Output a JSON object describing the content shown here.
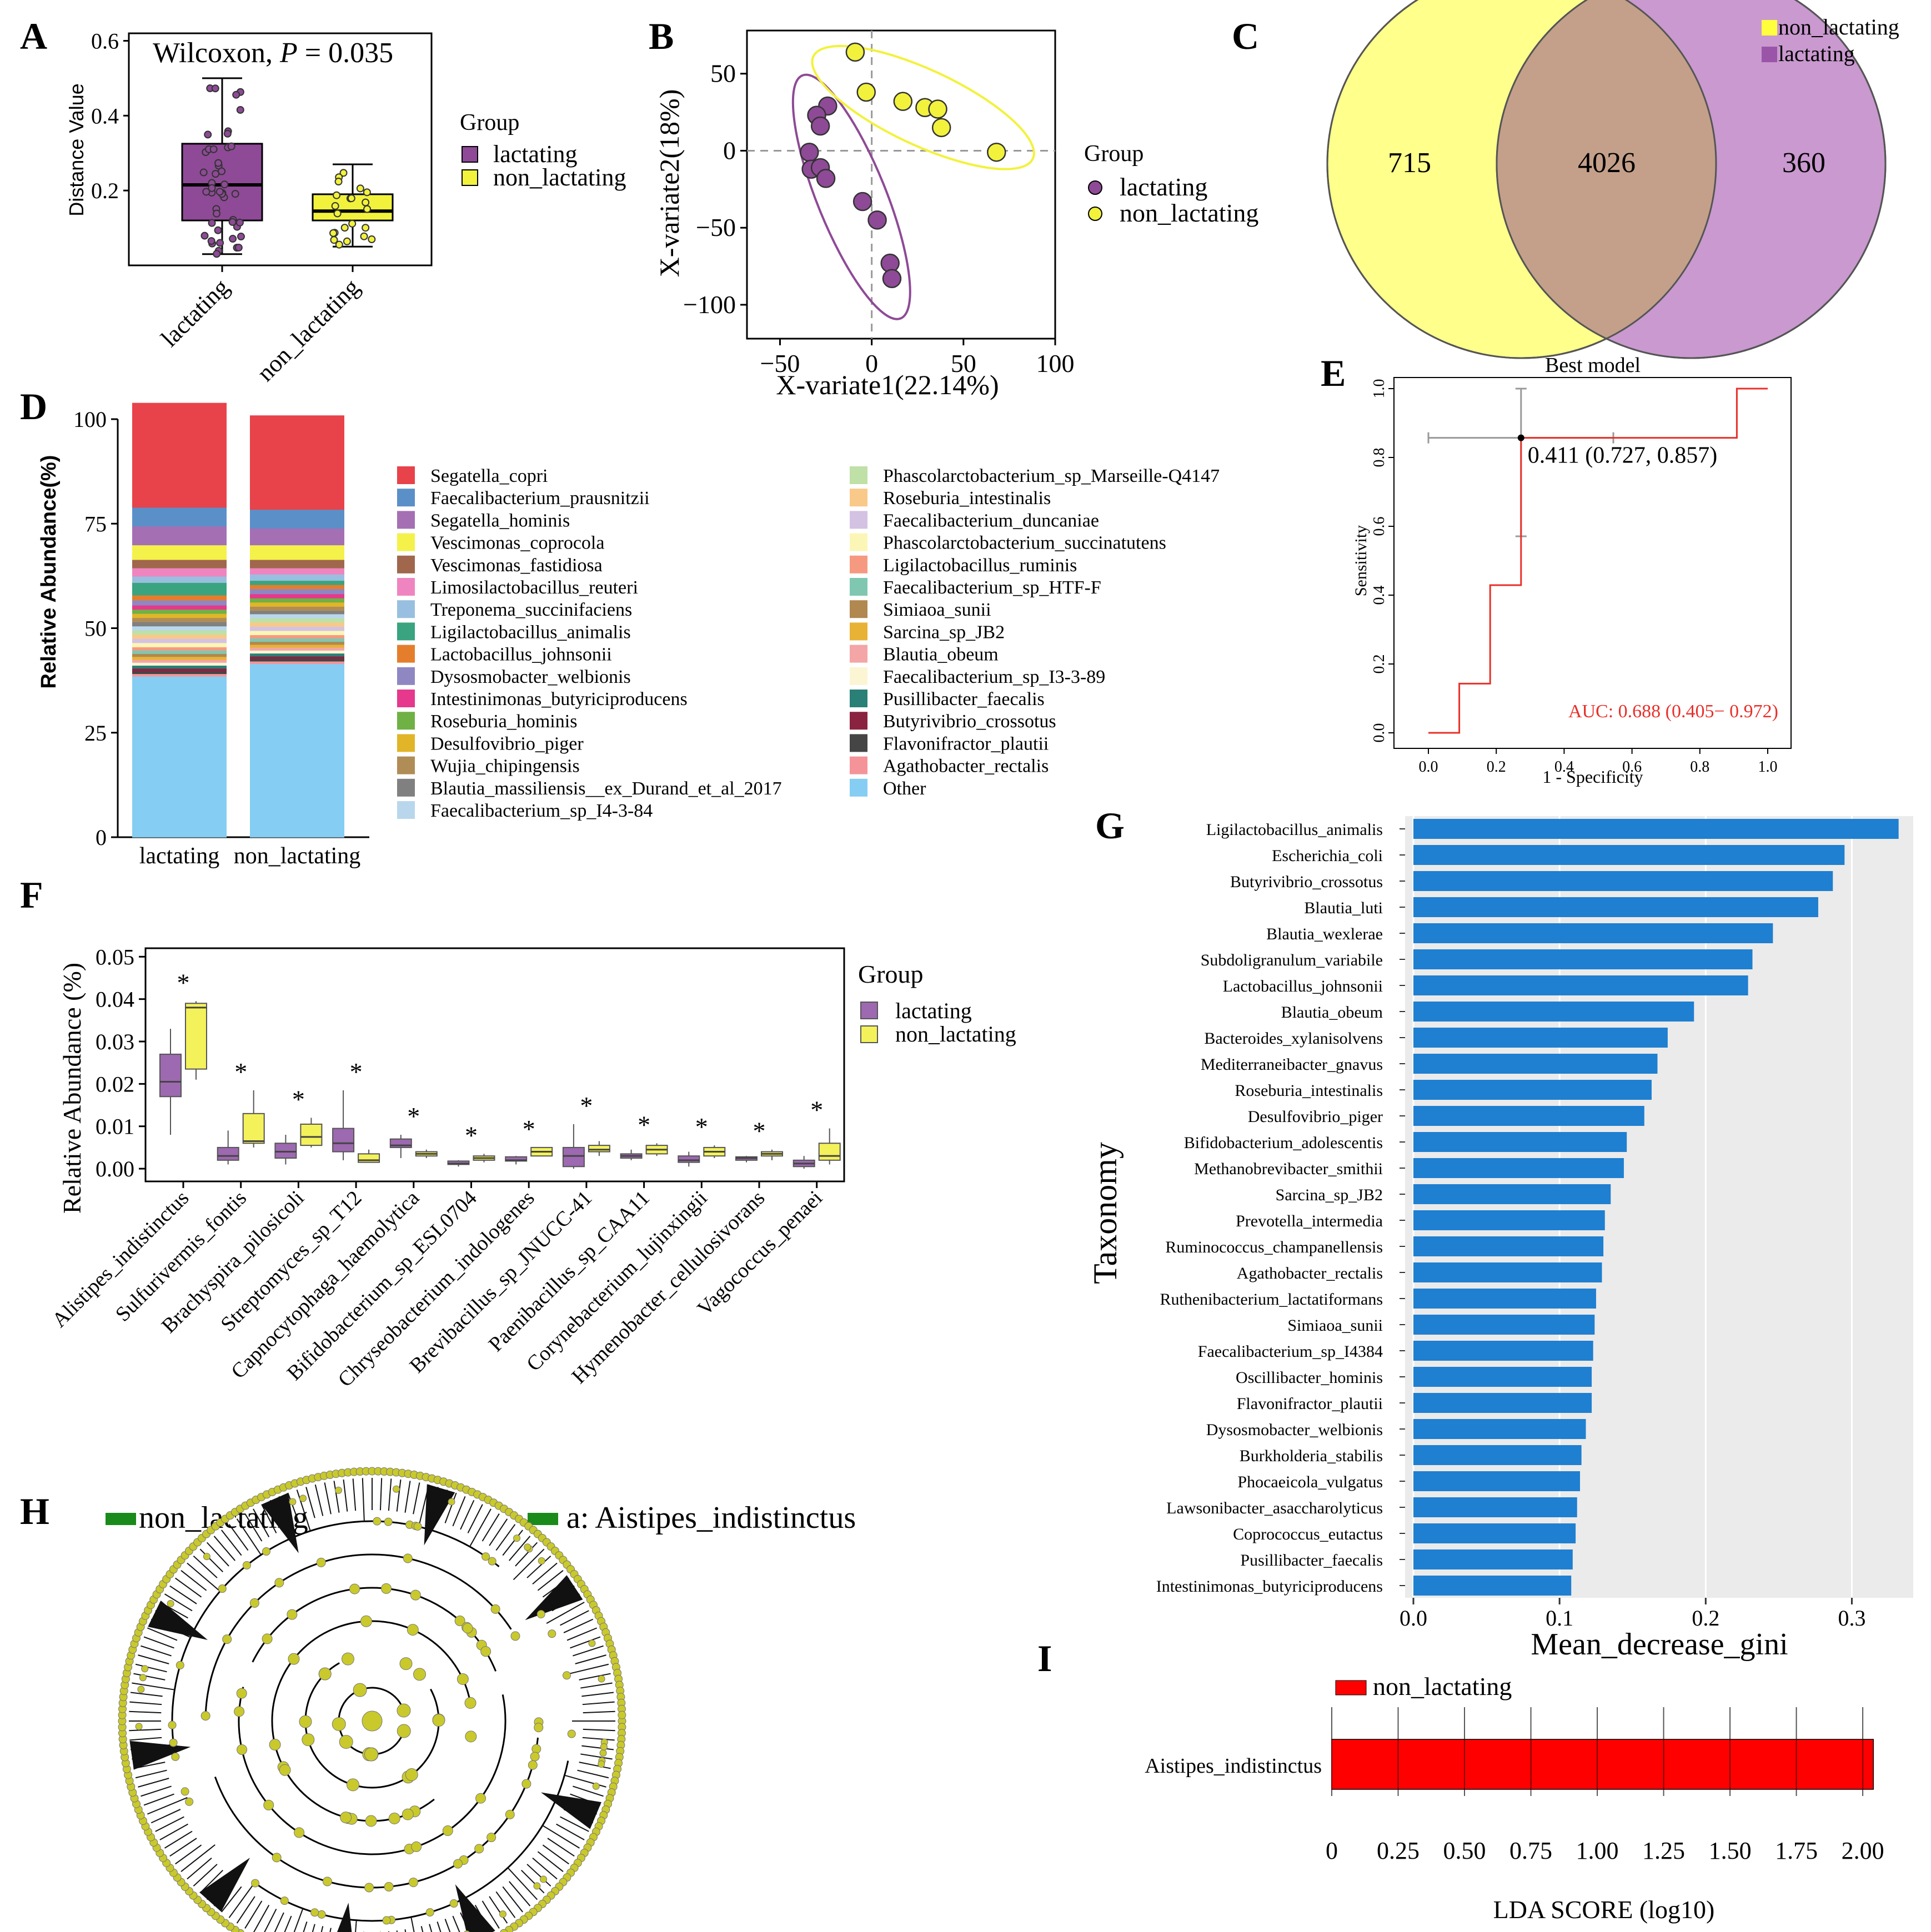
{
  "panels": {
    "A": "A",
    "B": "B",
    "C": "C",
    "D": "D",
    "E": "E",
    "F": "F",
    "G": "G",
    "H": "H",
    "I": "I"
  },
  "chart_data": [
    {
      "id": "A",
      "type": "box",
      "title": "Wilcoxon, P = 0.035",
      "title_parts": {
        "prefix": "Wilcoxon, ",
        "p": "P",
        "suffix": " = 0.035"
      },
      "ylabel": "Distance Value",
      "ylim": [
        0.0,
        0.62
      ],
      "yticks": [
        "0.2",
        "0.4",
        "0.6"
      ],
      "ytick_values": [
        0.2,
        0.4,
        0.6
      ],
      "categories": [
        "lactating",
        "non_lactating"
      ],
      "legend_title": "Group",
      "legend": [
        "lactating",
        "non_lactating"
      ],
      "colors": {
        "lactating": "#8e4a96",
        "non_lactating": "#f2f23c"
      },
      "boxes": [
        {
          "name": "lactating",
          "min": 0.03,
          "q1": 0.12,
          "median": 0.215,
          "q3": 0.325,
          "max": 0.5
        },
        {
          "name": "non_lactating",
          "min": 0.05,
          "q1": 0.12,
          "median": 0.145,
          "q3": 0.19,
          "max": 0.27
        }
      ]
    },
    {
      "id": "B",
      "type": "scatter",
      "xlabel": "X-variate1(22.14%)",
      "ylabel": "X-variate2(18%)",
      "xlim": [
        -68,
        100
      ],
      "ylim": [
        -122,
        78
      ],
      "xticks": [
        "−50",
        "0",
        "50",
        "100"
      ],
      "xtick_values": [
        -50,
        0,
        50,
        100
      ],
      "yticks": [
        "50",
        "0",
        "−50",
        "−100"
      ],
      "ytick_values": [
        50,
        0,
        -50,
        -100
      ],
      "legend_title": "Group",
      "legend": [
        "lactating",
        "non_lactating"
      ],
      "series": [
        {
          "name": "lactating",
          "color": "#8e4a96",
          "points": [
            [
              -24,
              29
            ],
            [
              -30,
              23
            ],
            [
              -28,
              16
            ],
            [
              -34,
              -1
            ],
            [
              -33,
              -12
            ],
            [
              -28,
              -11
            ],
            [
              -25,
              -18
            ],
            [
              -5,
              -33
            ],
            [
              3,
              -45
            ],
            [
              10,
              -73
            ],
            [
              11,
              -83
            ]
          ]
        },
        {
          "name": "non_lactating",
          "color": "#f2f23c",
          "points": [
            [
              -9,
              64
            ],
            [
              -3,
              38
            ],
            [
              17,
              32
            ],
            [
              29,
              28
            ],
            [
              36,
              27
            ],
            [
              38,
              15
            ],
            [
              68,
              -1
            ]
          ]
        }
      ]
    },
    {
      "id": "C",
      "type": "venn",
      "sets": [
        "non_lactating",
        "lactating"
      ],
      "colors": {
        "non_lactating": "#ffff8c",
        "lactating": "#c999cf",
        "overlap": "#c4a08a"
      },
      "values": {
        "non_lactating_only": "715",
        "overlap": "4026",
        "lactating_only": "360"
      }
    },
    {
      "id": "D",
      "type": "stacked_bar",
      "ylabel": "Relative Abundance(%)",
      "ylim": [
        0,
        100
      ],
      "yticks": [
        "0",
        "25",
        "50",
        "75",
        "100"
      ],
      "ytick_values": [
        0,
        25,
        50,
        75,
        100
      ],
      "categories": [
        "lactating",
        "non_lactating"
      ],
      "series": [
        {
          "name": "Segatella_copri",
          "color": "#e8424b",
          "values": [
            25.0,
            22.5
          ]
        },
        {
          "name": "Faecalibacterium_prausnitzii",
          "color": "#5b8fc7",
          "values": [
            4.5,
            4.5
          ]
        },
        {
          "name": "Segatella_hominis",
          "color": "#a56fb4",
          "values": [
            4.5,
            4.0
          ]
        },
        {
          "name": "Vescimonas_coprocola",
          "color": "#f4f14a",
          "values": [
            3.5,
            3.5
          ]
        },
        {
          "name": "Vescimonas_fastidiosa",
          "color": "#a0674c",
          "values": [
            2.0,
            2.0
          ]
        },
        {
          "name": "Limosilactobacillus_reuteri",
          "color": "#ef85c0",
          "values": [
            2.0,
            1.5
          ]
        },
        {
          "name": "Treponema_succinifaciens",
          "color": "#98bfdf",
          "values": [
            1.5,
            1.5
          ]
        },
        {
          "name": "Ligilactobacillus_animalis",
          "color": "#3aa37f",
          "values": [
            3.0,
            1.0
          ]
        },
        {
          "name": "Lactobacillus_johnsonii",
          "color": "#e47e2c",
          "values": [
            1.2,
            1.0
          ]
        },
        {
          "name": "Dysosmobacter_welbionis",
          "color": "#8f87c2",
          "values": [
            1.2,
            1.2
          ]
        },
        {
          "name": "Intestinimonas_butyriciproducens",
          "color": "#e6388c",
          "values": [
            1.0,
            1.0
          ]
        },
        {
          "name": "Roseburia_hominis",
          "color": "#6fb144",
          "values": [
            1.0,
            1.0
          ]
        },
        {
          "name": "Desulfovibrio_piger",
          "color": "#e2b529",
          "values": [
            1.0,
            1.0
          ]
        },
        {
          "name": "Wujia_chipingensis",
          "color": "#b08d56",
          "values": [
            1.0,
            1.0
          ]
        },
        {
          "name": "Blautia_massiliensis__ex_Durand_et_al_2017",
          "color": "#808080",
          "values": [
            1.0,
            0.8
          ]
        },
        {
          "name": "Faecalibacterium_sp_I4-3-84",
          "color": "#b9d7ec",
          "values": [
            1.0,
            1.0
          ]
        },
        {
          "name": "Phascolarctobacterium_sp_Marseille-Q4147",
          "color": "#bfe0a6",
          "values": [
            1.0,
            1.0
          ]
        },
        {
          "name": "Roseburia_intestinalis",
          "color": "#f9c98a",
          "values": [
            1.0,
            1.0
          ]
        },
        {
          "name": "Faecalibacterium_duncaniae",
          "color": "#d4c2e2",
          "values": [
            1.0,
            1.0
          ]
        },
        {
          "name": "Phascolarctobacterium_succinatutens",
          "color": "#fbf6b6",
          "values": [
            1.0,
            1.0
          ]
        },
        {
          "name": "Ligilactobacillus_ruminis",
          "color": "#f59a80",
          "values": [
            0.8,
            0.8
          ]
        },
        {
          "name": "Faecalibacterium_sp_HTF-F",
          "color": "#7fc7b0",
          "values": [
            0.8,
            0.8
          ]
        },
        {
          "name": "Simiaoa_sunii",
          "color": "#b08850",
          "values": [
            0.7,
            0.7
          ]
        },
        {
          "name": "Sarcina_sp_JB2",
          "color": "#e7b235",
          "values": [
            0.7,
            0.7
          ]
        },
        {
          "name": "Blautia_obeum",
          "color": "#f4a5a5",
          "values": [
            0.7,
            0.7
          ]
        },
        {
          "name": "Faecalibacterium_sp_I3-3-89",
          "color": "#fbf5d4",
          "values": [
            0.7,
            0.7
          ]
        },
        {
          "name": "Pusillibacter_faecalis",
          "color": "#2a7f77",
          "values": [
            0.7,
            0.7
          ]
        },
        {
          "name": "Butyrivibrio_crossotus",
          "color": "#8a2340",
          "values": [
            0.7,
            0.6
          ]
        },
        {
          "name": "Flavonifractor_plautii",
          "color": "#454545",
          "values": [
            0.6,
            0.6
          ]
        },
        {
          "name": "Agathobacter_rectalis",
          "color": "#f49499",
          "values": [
            0.6,
            0.6
          ]
        },
        {
          "name": "Other",
          "color": "#85cdf2",
          "values": [
            38.5,
            41.5
          ]
        }
      ]
    },
    {
      "id": "E",
      "type": "roc",
      "title": "Best model",
      "xlabel": "1 - Specificity",
      "ylabel": "Sensitivity",
      "xticks": [
        "0.0",
        "0.2",
        "0.4",
        "0.6",
        "0.8",
        "1.0"
      ],
      "yticks": [
        "0.0",
        "0.2",
        "0.4",
        "0.6",
        "0.8",
        "1.0"
      ],
      "tick_values": [
        0,
        0.2,
        0.4,
        0.6,
        0.8,
        1.0
      ],
      "curve": [
        [
          0,
          0
        ],
        [
          0.091,
          0
        ],
        [
          0.091,
          0.143
        ],
        [
          0.182,
          0.143
        ],
        [
          0.182,
          0.429
        ],
        [
          0.273,
          0.429
        ],
        [
          0.273,
          0.857
        ],
        [
          0.909,
          0.857
        ],
        [
          0.909,
          1.0
        ],
        [
          1.0,
          1.0
        ]
      ],
      "best_point": [
        0.273,
        0.857
      ],
      "best_label": "0.411 (0.727, 0.857)",
      "auc_label": "AUC: 0.688 (0.405− 0.972)",
      "ci_x": [
        0.0,
        0.545
      ],
      "ci_y": [
        0.571,
        1.0
      ]
    },
    {
      "id": "F",
      "type": "box",
      "ylabel": "Relative Abundance (%)",
      "ylim": [
        -0.003,
        0.052
      ],
      "yticks": [
        "0.00",
        "0.01",
        "0.02",
        "0.03",
        "0.04",
        "0.05"
      ],
      "ytick_values": [
        0.0,
        0.01,
        0.02,
        0.03,
        0.04,
        0.05
      ],
      "legend_title": "Group",
      "legend": [
        "lactating",
        "non_lactating"
      ],
      "colors": {
        "lactating": "#9d69b0",
        "non_lactating": "#f4f25a"
      },
      "significance": "*",
      "categories": [
        "Alistipes_indistinctus",
        "Sulfurivermis_fontis",
        "Brachyspira_pilosicoli",
        "Streptomyces_sp_T12",
        "Capnocytophaga_haemolytica",
        "Bifidobacterium_sp_ESL0704",
        "Chryseobacterium_indologenes",
        "Brevibacillus_sp_JNUCC-41",
        "Paenibacillus_sp_CAA11",
        "Corynebacterium_lujinxingii",
        "Hymenobacter_cellulosivorans",
        "Vagococcus_penaei"
      ],
      "lactating": [
        [
          0.008,
          0.017,
          0.0205,
          0.027,
          0.033
        ],
        [
          0.001,
          0.002,
          0.003,
          0.005,
          0.009
        ],
        [
          0.001,
          0.0025,
          0.004,
          0.006,
          0.008
        ],
        [
          0.002,
          0.004,
          0.006,
          0.0095,
          0.0185
        ],
        [
          0.0025,
          0.005,
          0.0055,
          0.007,
          0.008
        ],
        [
          0.0005,
          0.001,
          0.0012,
          0.0018,
          0.002
        ],
        [
          0.001,
          0.0018,
          0.002,
          0.0028,
          0.003
        ],
        [
          0.0,
          0.0005,
          0.003,
          0.005,
          0.0105
        ],
        [
          0.002,
          0.0025,
          0.003,
          0.0035,
          0.0045
        ],
        [
          0.0005,
          0.0015,
          0.002,
          0.003,
          0.004
        ],
        [
          0.0015,
          0.002,
          0.0025,
          0.0028,
          0.003
        ],
        [
          0.0,
          0.0005,
          0.0012,
          0.002,
          0.003
        ]
      ],
      "non_lactating": [
        [
          0.021,
          0.0235,
          0.038,
          0.039,
          0.0395
        ],
        [
          0.005,
          0.006,
          0.0065,
          0.013,
          0.0185
        ],
        [
          0.005,
          0.0055,
          0.0075,
          0.0105,
          0.012
        ],
        [
          0.0015,
          0.0015,
          0.002,
          0.0035,
          0.0045
        ],
        [
          0.0025,
          0.003,
          0.0035,
          0.004,
          0.0045
        ],
        [
          0.0015,
          0.002,
          0.0025,
          0.003,
          0.0035
        ],
        [
          0.003,
          0.003,
          0.004,
          0.005,
          0.005
        ],
        [
          0.003,
          0.004,
          0.0045,
          0.0055,
          0.0065
        ],
        [
          0.003,
          0.0035,
          0.0045,
          0.0055,
          0.006
        ],
        [
          0.0025,
          0.003,
          0.004,
          0.005,
          0.0055
        ],
        [
          0.002,
          0.003,
          0.0035,
          0.004,
          0.0045
        ],
        [
          0.001,
          0.002,
          0.003,
          0.006,
          0.0095
        ]
      ]
    },
    {
      "id": "G",
      "type": "bar",
      "orientation": "horizontal",
      "xlabel": "Mean_decrease_gini",
      "ylabel": "Taxonomy",
      "xlim": [
        0,
        0.342
      ],
      "xticks": [
        "0.0",
        "0.1",
        "0.2",
        "0.3"
      ],
      "xtick_values": [
        0.0,
        0.1,
        0.2,
        0.3
      ],
      "color": "#1f7fd1",
      "categories": [
        "Ligilactobacillus_animalis",
        "Escherichia_coli",
        "Butyrivibrio_crossotus",
        "Blautia_luti",
        "Blautia_wexlerae",
        "Subdoligranulum_variabile",
        "Lactobacillus_johnsonii",
        "Blautia_obeum",
        "Bacteroides_xylanisolvens",
        "Mediterraneibacter_gnavus",
        "Roseburia_intestinalis",
        "Desulfovibrio_piger",
        "Bifidobacterium_adolescentis",
        "Methanobrevibacter_smithii",
        "Sarcina_sp_JB2",
        "Prevotella_intermedia",
        "Ruminococcus_champanellensis",
        "Agathobacter_rectalis",
        "Ruthenibacterium_lactatiformans",
        "Simiaoa_sunii",
        "Faecalibacterium_sp_I4384",
        "Oscillibacter_hominis",
        "Flavonifractor_plautii",
        "Dysosmobacter_welbionis",
        "Burkholderia_stabilis",
        "Phocaeicola_vulgatus",
        "Lawsonibacter_asaccharolyticus",
        "Coprococcus_eutactus",
        "Pusillibacter_faecalis",
        "Intestinimonas_butyriciproducens"
      ],
      "values": [
        0.332,
        0.295,
        0.287,
        0.277,
        0.246,
        0.232,
        0.229,
        0.192,
        0.174,
        0.167,
        0.163,
        0.158,
        0.146,
        0.144,
        0.135,
        0.131,
        0.13,
        0.129,
        0.125,
        0.124,
        0.123,
        0.122,
        0.122,
        0.118,
        0.115,
        0.114,
        0.112,
        0.111,
        0.109,
        0.108
      ]
    },
    {
      "id": "H",
      "type": "cladogram",
      "legend": [
        {
          "label": "non_lactating",
          "color": "#1a8a1a"
        },
        {
          "label": "a: Aistipes_indistinctus",
          "color": "#1a8a1a"
        }
      ],
      "node_color": "#c9c92c",
      "highlight_label": "a"
    },
    {
      "id": "I",
      "type": "bar",
      "orientation": "horizontal",
      "xlabel": "LDA SCORE (log10)",
      "xlim": [
        0,
        2.05
      ],
      "xticks": [
        "0",
        "0.25",
        "0.50",
        "0.75",
        "1.00",
        "1.25",
        "1.50",
        "1.75",
        "2.00"
      ],
      "xtick_values": [
        0,
        0.25,
        0.5,
        0.75,
        1.0,
        1.25,
        1.5,
        1.75,
        2.0
      ],
      "legend": [
        "non_lactating"
      ],
      "color": "#ff0000",
      "categories": [
        "Aistipes_indistinctus"
      ],
      "values": [
        2.04
      ]
    }
  ]
}
